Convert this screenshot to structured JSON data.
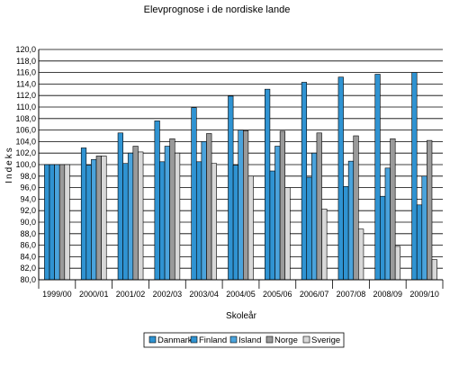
{
  "chart_data": {
    "type": "bar",
    "title": "Elevprognose i de nordiske lande",
    "xlabel": "Skoleår",
    "ylabel": "Indeks",
    "ylim": [
      80,
      120
    ],
    "ytick_step": 2,
    "ytick_labels": [
      "80,0",
      "82,0",
      "84,0",
      "86,0",
      "88,0",
      "90,0",
      "92,0",
      "94,0",
      "96,0",
      "98,0",
      "100,0",
      "102,0",
      "104,0",
      "106,0",
      "108,0",
      "110,0",
      "112,0",
      "114,0",
      "116,0",
      "118,0",
      "120,0"
    ],
    "grid": true,
    "legend_position": "bottom",
    "categories": [
      "1999/00",
      "2000/01",
      "2001/02",
      "2002/03",
      "2003/04",
      "2004/05",
      "2005/06",
      "2006/07",
      "2007/08",
      "2008/09",
      "2009/10"
    ],
    "series": [
      {
        "name": "Danmark",
        "color": "#2f93d2",
        "values": [
          100.0,
          102.9,
          105.5,
          107.6,
          109.9,
          111.9,
          113.1,
          114.3,
          115.2,
          115.7,
          116.0
        ]
      },
      {
        "name": "Finland",
        "color": "#2f93d2",
        "values": [
          100.0,
          99.9,
          100.2,
          100.5,
          100.5,
          99.9,
          98.9,
          97.8,
          96.2,
          94.5,
          93.0
        ]
      },
      {
        "name": "Island",
        "color": "#4aa3dc",
        "values": [
          100.0,
          100.9,
          102.0,
          103.2,
          104.0,
          106.0,
          103.2,
          102.0,
          100.6,
          99.4,
          98.0
        ]
      },
      {
        "name": "Norge",
        "color": "#9a9a9a",
        "values": [
          100.0,
          101.5,
          103.2,
          104.5,
          105.4,
          105.9,
          105.8,
          105.5,
          105.0,
          104.5,
          104.2
        ]
      },
      {
        "name": "Sverige",
        "color": "#d8d8d8",
        "values": [
          100.0,
          101.5,
          102.2,
          102.0,
          100.2,
          98.0,
          96.0,
          92.3,
          88.8,
          85.8,
          83.5
        ]
      }
    ]
  }
}
